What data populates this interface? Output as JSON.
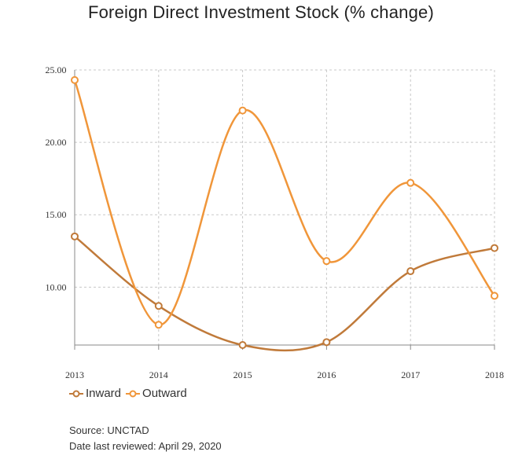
{
  "title": "Foreign Direct Investment Stock (% change)",
  "colors": {
    "inward": "#C07A3A",
    "outward": "#F0963A",
    "grid": "#C8C8C8",
    "axis": "#888888"
  },
  "chart_data": {
    "type": "line",
    "title": "Foreign Direct Investment Stock (% change)",
    "x": [
      "2013",
      "2014",
      "2015",
      "2016",
      "2017",
      "2018"
    ],
    "y_ticks": [
      "10.00",
      "15.00",
      "20.00",
      "25.00"
    ],
    "ylim": [
      6.0,
      25.0
    ],
    "grid": true,
    "legend_position": "bottom-left",
    "series": [
      {
        "name": "Inward",
        "values": [
          13.5,
          8.7,
          6.0,
          6.2,
          11.1,
          12.7
        ]
      },
      {
        "name": "Outward",
        "values": [
          24.3,
          7.4,
          22.2,
          11.8,
          17.2,
          9.4
        ]
      }
    ]
  },
  "legend": {
    "inward": "Inward",
    "outward": "Outward"
  },
  "source": {
    "line1": "Source: UNCTAD",
    "line2": "Date last reviewed: April 29, 2020"
  }
}
